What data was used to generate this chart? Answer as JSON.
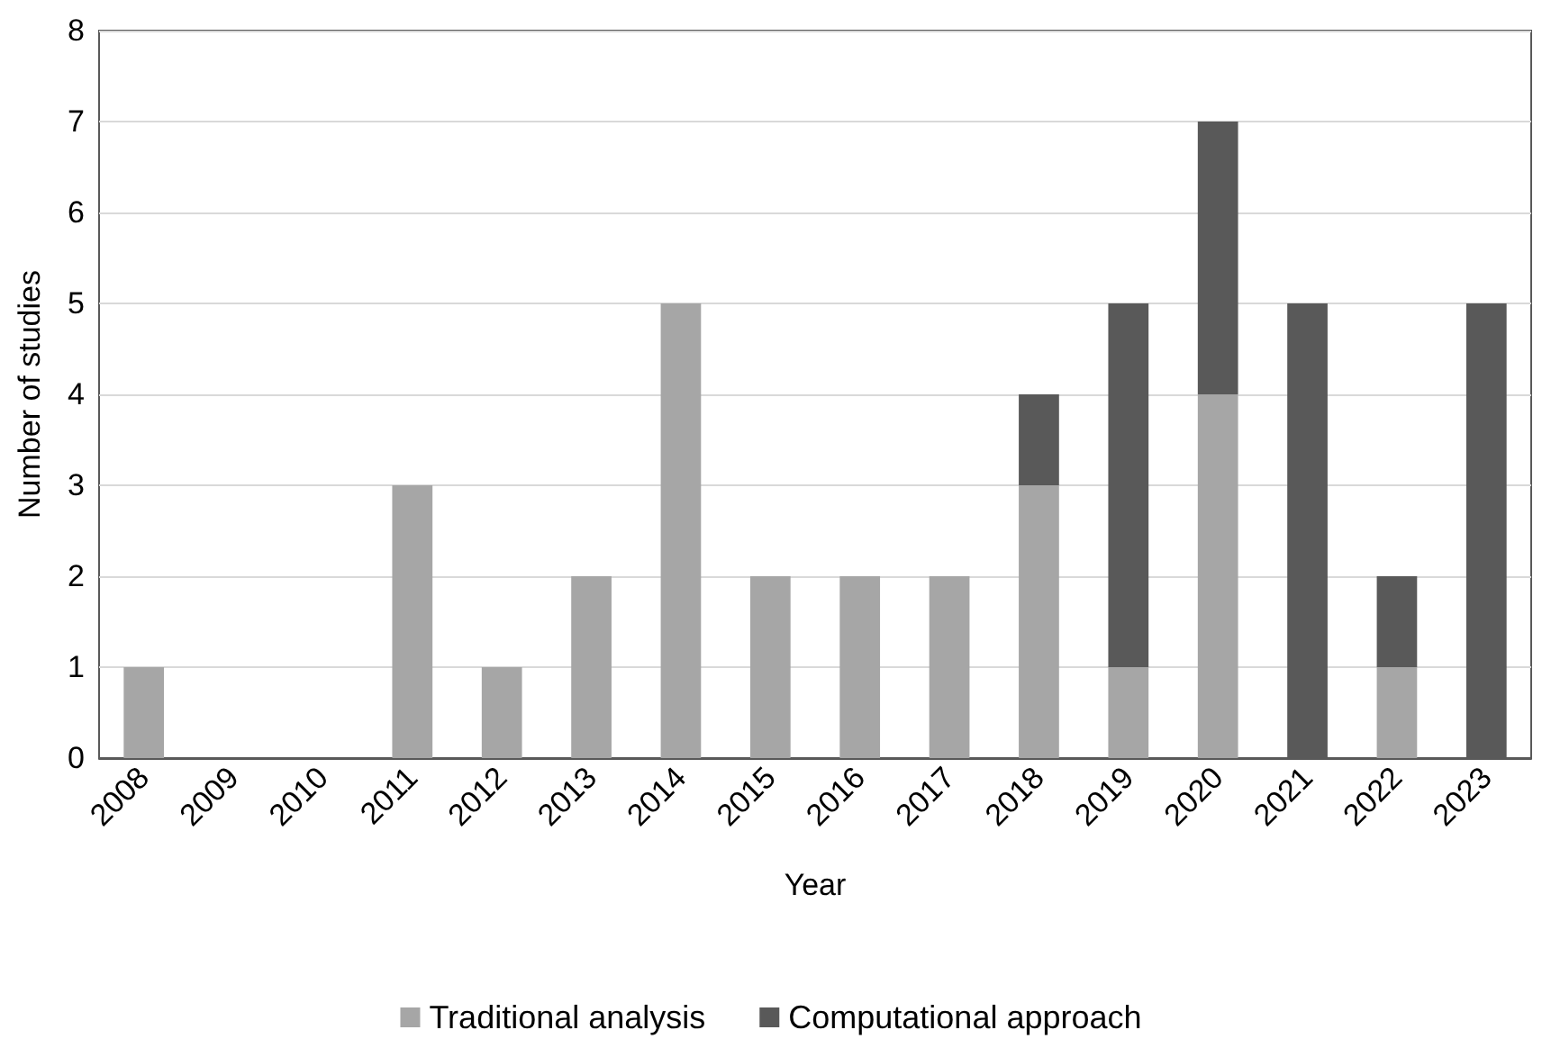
{
  "chart_data": {
    "type": "bar",
    "stacked": true,
    "xlabel": "Year",
    "ylabel": "Number of studies",
    "categories": [
      "2008",
      "2009",
      "2010",
      "2011",
      "2012",
      "2013",
      "2014",
      "2015",
      "2016",
      "2017",
      "2018",
      "2019",
      "2020",
      "2021",
      "2022",
      "2023"
    ],
    "series": [
      {
        "name": "Traditional analysis",
        "color": "#a6a6a6",
        "values": [
          1,
          0,
          0,
          3,
          1,
          2,
          5,
          2,
          2,
          2,
          3,
          1,
          4,
          0,
          1,
          0
        ]
      },
      {
        "name": "Computational approach",
        "color": "#595959",
        "values": [
          0,
          0,
          0,
          0,
          0,
          0,
          0,
          0,
          0,
          0,
          1,
          4,
          3,
          5,
          1,
          5
        ]
      }
    ],
    "ylim": [
      0,
      8
    ],
    "yticks": [
      0,
      1,
      2,
      3,
      4,
      5,
      6,
      7,
      8
    ],
    "grid": "y",
    "legend": "bottom"
  }
}
